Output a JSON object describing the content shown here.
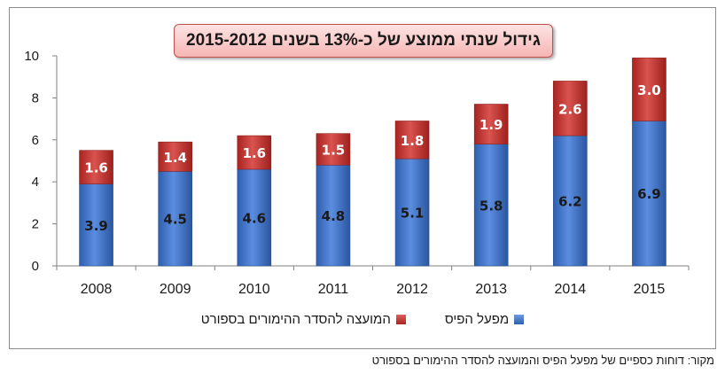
{
  "title": "גידול שנתי ממוצע של כ-13% בשנים 2015-2012",
  "source": "מקור: דוחות כספיים של מפעל הפיס והמועצה להסדר ההימורים בספורט",
  "colors": {
    "series1": "#3a6fc4",
    "series2": "#c0302b",
    "frame": "#8c8c8c"
  },
  "chart_data": {
    "type": "bar",
    "stacked": true,
    "categories": [
      "2008",
      "2009",
      "2010",
      "2011",
      "2012",
      "2013",
      "2014",
      "2015"
    ],
    "series": [
      {
        "name": "מפעל הפיס",
        "values": [
          3.9,
          4.5,
          4.6,
          4.8,
          5.1,
          5.8,
          6.2,
          6.9
        ],
        "labels": [
          "3.9",
          "4.5",
          "4.6",
          "4.8",
          "5.1",
          "5.8",
          "6.2",
          "6.9"
        ]
      },
      {
        "name": "המועצה להסדר ההימורים בספורט",
        "values": [
          1.6,
          1.4,
          1.6,
          1.5,
          1.8,
          1.9,
          2.6,
          3.0
        ],
        "labels": [
          "1.6",
          "1.4",
          "1.6",
          "1.5",
          "1.8",
          "1.9",
          "2.6",
          "3.0"
        ]
      }
    ],
    "yticks": [
      "0",
      "2",
      "4",
      "6",
      "8",
      "10"
    ],
    "ylim": [
      0,
      10
    ],
    "grid": false,
    "legend_position": "bottom"
  }
}
